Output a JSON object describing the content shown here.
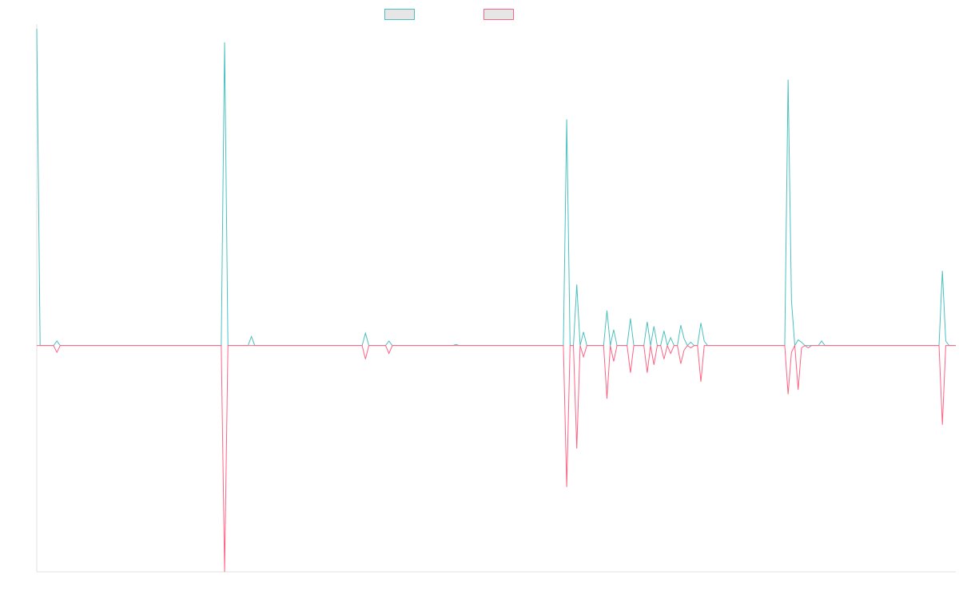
{
  "chart_data": {
    "type": "line",
    "title": "",
    "xlabel": "",
    "ylabel": "",
    "grid": false,
    "legend_placement": "top",
    "ylim": [
      -1,
      1.4
    ],
    "series": [
      {
        "name": "",
        "color": "#4bc0c0",
        "values": [
          1.4,
          0,
          0,
          0,
          0,
          0,
          0.02,
          0,
          0,
          0,
          0,
          0,
          0,
          0,
          0,
          0,
          0,
          0,
          0,
          0,
          0,
          0,
          0,
          0,
          0,
          0,
          0,
          0,
          0,
          0,
          0,
          0,
          0,
          0,
          0,
          0,
          0,
          0,
          0,
          0,
          0,
          0,
          0,
          0,
          0,
          0,
          0,
          0,
          0,
          0,
          0,
          0,
          0,
          0,
          0,
          0,
          1.34,
          0,
          0,
          0,
          0,
          0,
          0,
          0,
          0.04,
          0,
          0,
          0,
          0,
          0,
          0,
          0,
          0,
          0,
          0,
          0,
          0,
          0,
          0,
          0,
          0,
          0,
          0,
          0,
          0,
          0,
          0,
          0,
          0,
          0,
          0,
          0,
          0,
          0,
          0,
          0,
          0,
          0,
          0.055,
          0,
          0,
          0,
          0,
          0,
          0,
          0.02,
          0,
          0,
          0,
          0,
          0,
          0,
          0,
          0,
          0,
          0,
          0,
          0,
          0,
          0,
          0,
          0,
          0,
          0,
          0,
          0.005,
          0,
          0,
          0,
          0,
          0,
          0,
          0,
          0,
          0,
          0,
          0,
          0,
          0,
          0,
          0,
          0,
          0,
          0,
          0,
          0,
          0,
          0,
          0,
          0,
          0,
          0,
          0,
          0,
          0,
          0,
          0,
          0,
          1.0,
          0,
          0,
          0.27,
          0,
          0.06,
          0,
          0,
          0,
          0,
          0,
          0,
          0.155,
          0,
          0.07,
          0,
          0,
          0,
          0,
          0.12,
          0,
          0,
          0,
          0,
          0.105,
          0,
          0.085,
          0,
          0,
          0.065,
          0,
          0.035,
          0,
          0,
          0.09,
          0.03,
          0,
          0.015,
          0,
          0,
          0.1,
          0.02,
          0,
          0,
          0,
          0,
          0,
          0,
          0,
          0,
          0,
          0,
          0,
          0,
          0,
          0,
          0,
          0,
          0,
          0,
          0,
          0,
          0,
          0,
          0,
          0,
          1.175,
          0.2,
          0,
          0.025,
          0.015,
          0,
          0,
          0,
          0,
          0,
          0.02,
          0,
          0,
          0,
          0,
          0,
          0,
          0,
          0,
          0,
          0,
          0,
          0,
          0,
          0,
          0,
          0,
          0,
          0,
          0,
          0,
          0,
          0,
          0,
          0,
          0,
          0,
          0,
          0,
          0,
          0,
          0,
          0,
          0,
          0,
          0,
          0.33,
          0.02,
          0,
          0,
          0
        ]
      },
      {
        "name": "",
        "color": "#ff6384",
        "values": [
          0,
          0,
          0,
          0,
          0,
          0,
          -0.03,
          0,
          0,
          0,
          0,
          0,
          0,
          0,
          0,
          0,
          0,
          0,
          0,
          0,
          0,
          0,
          0,
          0,
          0,
          0,
          0,
          0,
          0,
          0,
          0,
          0,
          0,
          0,
          0,
          0,
          0,
          0,
          0,
          0,
          0,
          0,
          0,
          0,
          0,
          0,
          0,
          0,
          0,
          0,
          0,
          0,
          0,
          0,
          0,
          0,
          -1.0,
          0,
          0,
          0,
          0,
          0,
          0,
          0,
          0,
          0,
          0,
          0,
          0,
          0,
          0,
          0,
          0,
          0,
          0,
          0,
          0,
          0,
          0,
          0,
          0,
          0,
          0,
          0,
          0,
          0,
          0,
          0,
          0,
          0,
          0,
          0,
          0,
          0,
          0,
          0,
          0,
          0,
          -0.06,
          0,
          0,
          0,
          0,
          0,
          0,
          -0.035,
          0,
          0,
          0,
          0,
          0,
          0,
          0,
          0,
          0,
          0,
          0,
          0,
          0,
          0,
          0,
          0,
          0,
          0,
          0,
          0,
          0,
          0,
          0,
          0,
          0,
          0,
          0,
          0,
          0,
          0,
          0,
          0,
          0,
          0,
          0,
          0,
          0,
          0,
          0,
          0,
          0,
          0,
          0,
          0,
          0,
          0,
          0,
          0,
          0,
          0,
          0,
          0,
          -0.625,
          0,
          0,
          -0.455,
          0,
          -0.05,
          0,
          0,
          0,
          0,
          0,
          0,
          -0.235,
          0,
          -0.07,
          0,
          0,
          0,
          0,
          -0.12,
          0,
          0,
          0,
          0,
          -0.12,
          0,
          -0.085,
          0,
          0,
          -0.06,
          0,
          -0.035,
          0,
          0,
          -0.08,
          -0.02,
          0,
          -0.01,
          0,
          0,
          -0.16,
          0,
          0,
          0,
          0,
          0,
          0,
          0,
          0,
          0,
          0,
          0,
          0,
          0,
          0,
          0,
          0,
          0,
          0,
          0,
          0,
          0,
          0,
          0,
          0,
          0,
          -0.215,
          -0.03,
          0,
          -0.195,
          -0.01,
          0,
          -0.01,
          0,
          0,
          0,
          0,
          0,
          0,
          0,
          0,
          0,
          0,
          0,
          0,
          0,
          0,
          0,
          0,
          0,
          0,
          0,
          0,
          0,
          0,
          0,
          0,
          0,
          0,
          0,
          0,
          0,
          0,
          0,
          0,
          0,
          0,
          0,
          0,
          0,
          0,
          0,
          -0.35,
          0,
          0,
          0,
          0
        ]
      }
    ]
  }
}
